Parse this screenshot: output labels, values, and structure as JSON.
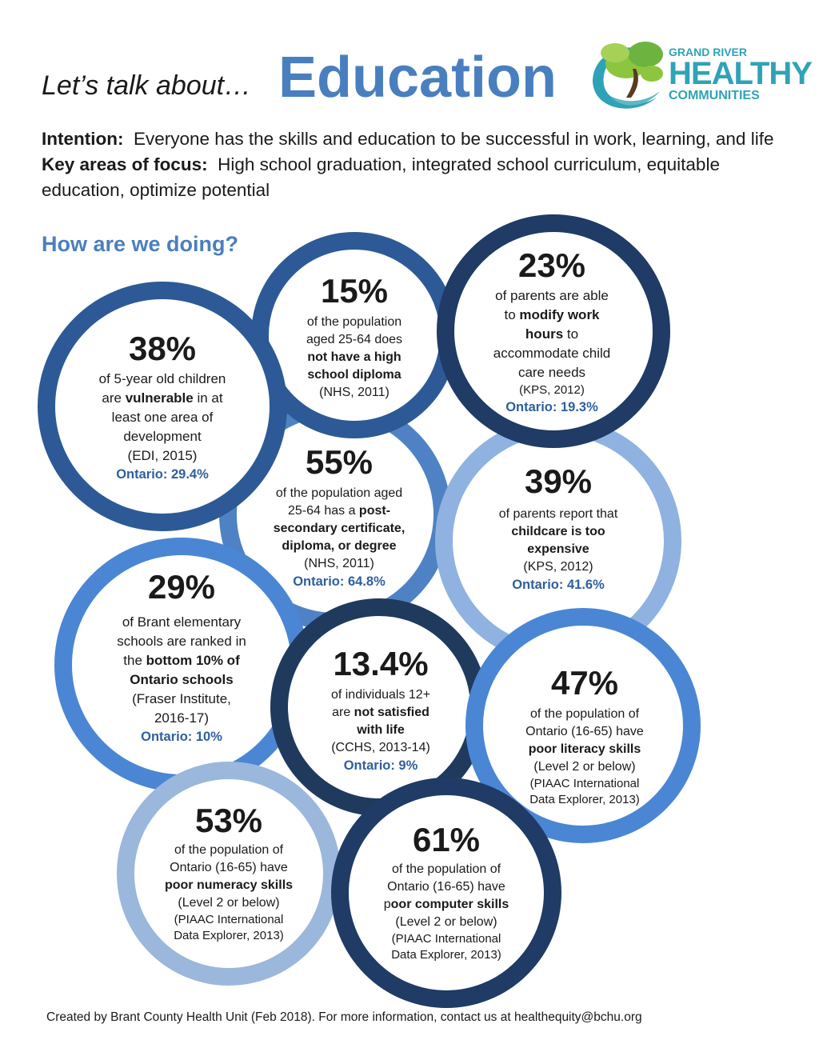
{
  "header": {
    "pre": "Let’s talk about…",
    "title": "Education",
    "logo": {
      "line1": "GRAND RIVER",
      "line2": "HEALTHY",
      "line3": "COMMUNITIES"
    }
  },
  "intro": {
    "intention_label": "Intention:",
    "intention_text": "Everyone has the skills and education to be successful in work, learning, and life",
    "focus_label": "Key areas of focus:",
    "focus_text": "High school graduation, integrated school curriculum, equitable education, optimize potential"
  },
  "section_title": "How are we doing?",
  "stats": [
    {
      "pct": "15%",
      "d1": "of the population",
      "d2": "aged 25-64 does",
      "d3": "not have a  high",
      "d4": "school diploma",
      "src": "(NHS, 2011)",
      "color": "#2d5a96"
    },
    {
      "pct": "23%",
      "d1": "of parents are able",
      "d2": "to ",
      "d2b": "modify work",
      "d3": "hours",
      "d3b": " to",
      "d4": "accommodate child",
      "d5": "care needs",
      "src": "(KPS, 2012)",
      "ont": "Ontario: 19.3%",
      "color": "#1f3b66"
    },
    {
      "pct": "38%",
      "d1": "of 5-year old children",
      "d2a": "are ",
      "d2b": "vulnerable",
      "d2c": " in at",
      "d3": "least one area of",
      "d4": "development",
      "src": "(EDI, 2015)",
      "ont": "Ontario: 29.4%",
      "color": "#2d5a96"
    },
    {
      "pct": "55%",
      "d1": "of the population aged",
      "d2a": "25-64 has a ",
      "d2b": "post-",
      "d3": "secondary certificate,",
      "d4": "diploma, or degree",
      "src": "(NHS, 2011)",
      "ont": "Ontario: 64.8%",
      "color": "#4f82c4"
    },
    {
      "pct": "39%",
      "d1": "of parents report that",
      "d2": "childcare is too",
      "d3": "expensive",
      "src": "(KPS, 2012)",
      "ont": "Ontario: 41.6%",
      "color": "#8fb2e0"
    },
    {
      "pct": "29%",
      "d1": "of Brant elementary",
      "d2": "schools are ranked in",
      "d3a": "the ",
      "d3b": "bottom 10% of",
      "d4": "Ontario schools",
      "src1": "(Fraser Institute,",
      "src2": "2016-17)",
      "ont": "Ontario: 10%",
      "color": "#4a86d4"
    },
    {
      "pct": "13.4%",
      "d1": "of individuals 12+",
      "d2a": "are ",
      "d2b": "not satisfied",
      "d3": "with life",
      "src": "(CCHS, 2013-14)",
      "ont": "Ontario: 9%",
      "color": "#203a5e"
    },
    {
      "pct": "47%",
      "d1": "of the population of",
      "d2": "Ontario (16-65) have",
      "d3": "poor literacy skills",
      "d4": "(Level 2 or below)",
      "src1": "(PIAAC International",
      "src2": "Data Explorer, 2013)",
      "color": "#4a86d4"
    },
    {
      "pct": "53%",
      "d1": "of the population of",
      "d2": "Ontario (16-65) have",
      "d3": "poor numeracy skills",
      "d4": "(Level 2 or below)",
      "src1": "(PIAAC International",
      "src2": "Data Explorer, 2013)",
      "color": "#9bb7dc"
    },
    {
      "pct": "61%",
      "d1": "of the population of",
      "d2": "Ontario (16-65) have",
      "d3a": "p",
      "d3b": "oor computer skills",
      "d4": "(Level 2 or below)",
      "src1": "(PIAAC International",
      "src2": "Data Explorer, 2013)",
      "color": "#1f3b66"
    }
  ],
  "footer": "Created by Brant County Health Unit (Feb 2018). For more information, contact us at healthequity@bchu.org"
}
